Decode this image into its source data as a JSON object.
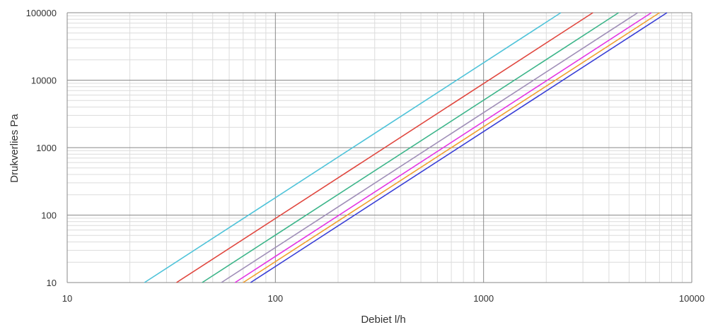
{
  "chart_data": {
    "type": "line",
    "title": "",
    "xlabel": "Debiet l/h",
    "ylabel": "Drukverlies Pa",
    "x_scale": "log",
    "y_scale": "log",
    "xlim": [
      10,
      10000
    ],
    "ylim": [
      10,
      100000
    ],
    "x_ticks": [
      "10",
      "100",
      "1000",
      "10000"
    ],
    "y_ticks": [
      "10",
      "100",
      "1000",
      "10000",
      "100000"
    ],
    "grid": true,
    "legend": "none",
    "series": [
      {
        "color": "#4fc3d9",
        "x": [
          23.5,
          2350
        ],
        "y": [
          10,
          100000
        ]
      },
      {
        "color": "#e0473f",
        "x": [
          33.5,
          3350
        ],
        "y": [
          10,
          100000
        ]
      },
      {
        "color": "#3db58a",
        "x": [
          44.5,
          4450
        ],
        "y": [
          10,
          100000
        ]
      },
      {
        "color": "#a08fb8",
        "x": [
          55,
          5500
        ],
        "y": [
          10,
          100000
        ]
      },
      {
        "color": "#e335e3",
        "x": [
          64,
          6400
        ],
        "y": [
          10,
          100000
        ]
      },
      {
        "color": "#f0a030",
        "x": [
          70,
          7000
        ],
        "y": [
          10,
          100000
        ]
      },
      {
        "color": "#3a3fd6",
        "x": [
          76,
          7600
        ],
        "y": [
          10,
          100000
        ]
      }
    ]
  }
}
